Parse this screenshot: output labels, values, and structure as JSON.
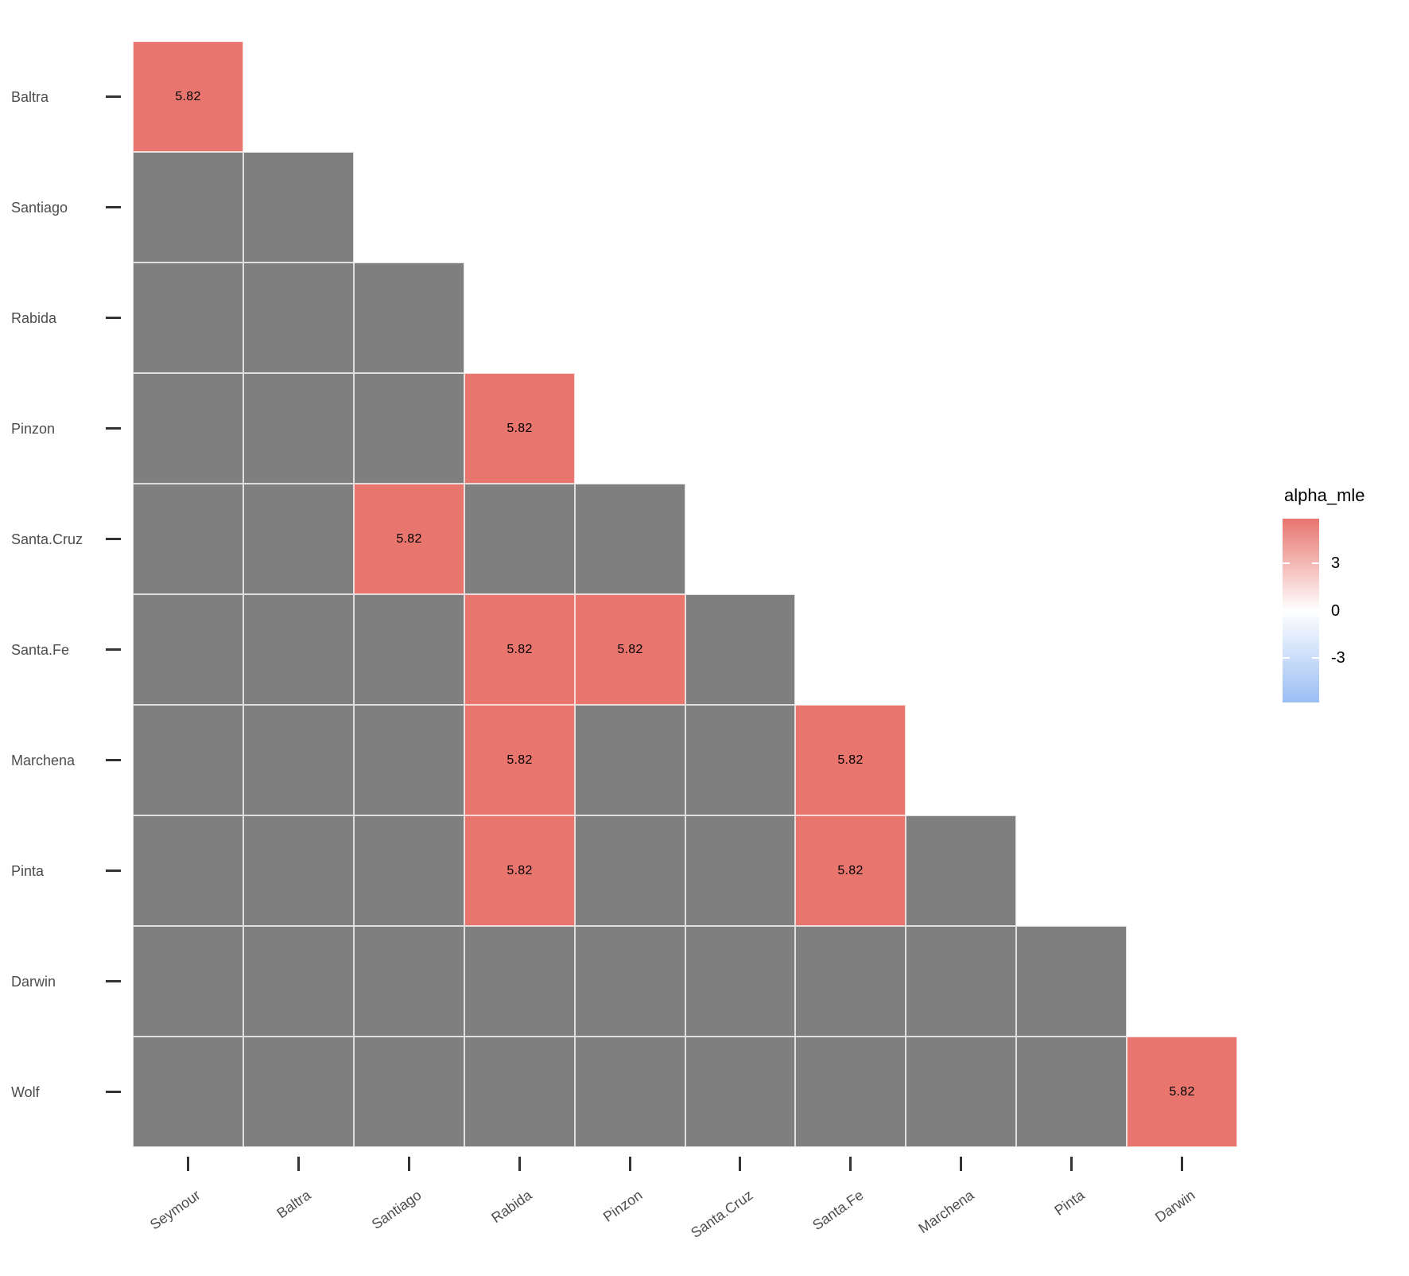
{
  "chart_data": {
    "type": "heatmap",
    "title": "",
    "x_categories": [
      "Seymour",
      "Baltra",
      "Santiago",
      "Rabida",
      "Pinzon",
      "Santa.Cruz",
      "Santa.Fe",
      "Marchena",
      "Pinta",
      "Darwin"
    ],
    "y_categories": [
      "Baltra",
      "Santiago",
      "Rabida",
      "Pinzon",
      "Santa.Cruz",
      "Santa.Fe",
      "Marchena",
      "Pinta",
      "Darwin",
      "Wolf"
    ],
    "shape": "lower-triangle",
    "rows": [
      {
        "name": "Baltra",
        "values": [
          5.82
        ]
      },
      {
        "name": "Santiago",
        "values": [
          null,
          null
        ]
      },
      {
        "name": "Rabida",
        "values": [
          null,
          null,
          null
        ]
      },
      {
        "name": "Pinzon",
        "values": [
          null,
          null,
          null,
          5.82
        ]
      },
      {
        "name": "Santa.Cruz",
        "values": [
          null,
          null,
          5.82,
          null,
          null
        ]
      },
      {
        "name": "Santa.Fe",
        "values": [
          null,
          null,
          null,
          5.82,
          5.82,
          null
        ]
      },
      {
        "name": "Marchena",
        "values": [
          null,
          null,
          null,
          5.82,
          null,
          null,
          5.82
        ]
      },
      {
        "name": "Pinta",
        "values": [
          null,
          null,
          null,
          5.82,
          null,
          null,
          5.82,
          null
        ]
      },
      {
        "name": "Darwin",
        "values": [
          null,
          null,
          null,
          null,
          null,
          null,
          null,
          null,
          null
        ]
      },
      {
        "name": "Wolf",
        "values": [
          null,
          null,
          null,
          null,
          null,
          null,
          null,
          null,
          null,
          5.82
        ]
      }
    ],
    "value_label_format": "2dp",
    "colors": {
      "high": "#E8756E",
      "mid": "#FFFFFF",
      "low": "#9ABEF3",
      "na": "#7F7F7F"
    },
    "legend": {
      "title": "alpha_mle",
      "domain": [
        -5.82,
        5.82
      ],
      "ticks": [
        3,
        0,
        -3
      ]
    }
  }
}
